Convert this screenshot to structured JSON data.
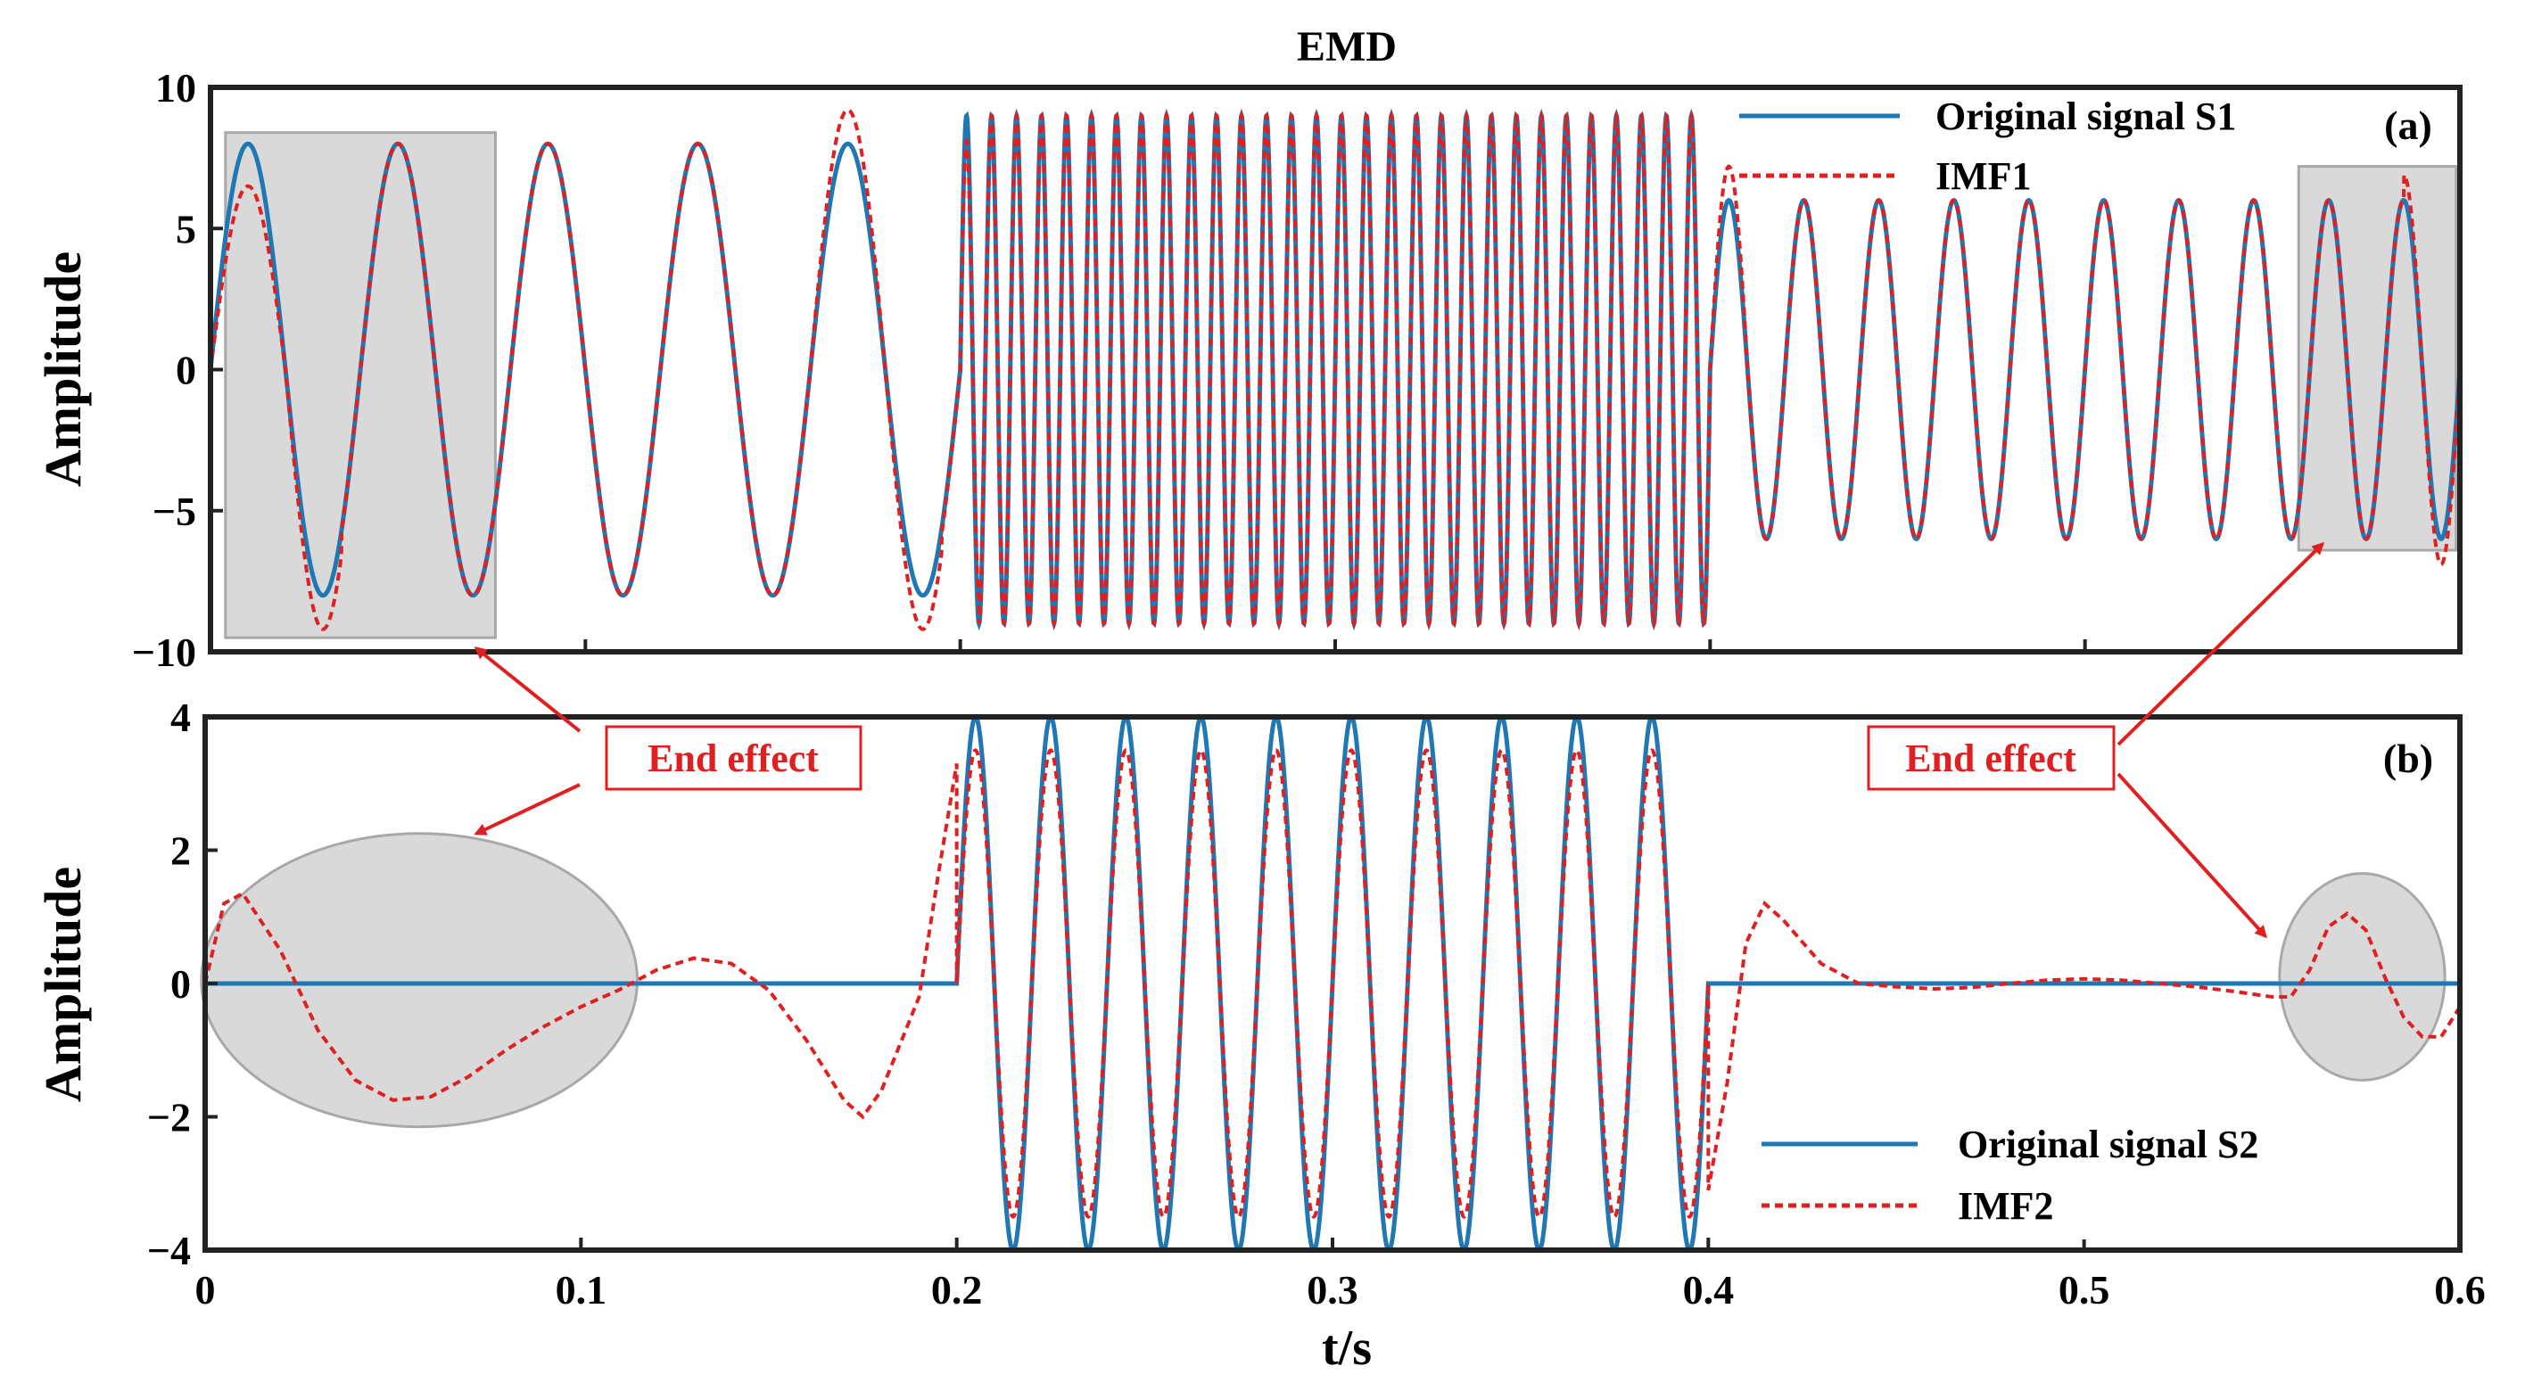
{
  "chart_data": [
    {
      "panel": "(a)",
      "type": "line",
      "title": "EMD",
      "xlabel": "",
      "ylabel": "Amplitude",
      "xlim": [
        0,
        0.6
      ],
      "ylim": [
        -10,
        10
      ],
      "yticks": [
        10,
        5,
        0,
        -5,
        -10
      ],
      "ytick_labels": [
        "10",
        "5",
        "0",
        "−5",
        "−10"
      ],
      "legend_position": "top-right",
      "series": [
        {
          "name": "Original signal S1",
          "color": "#1f77b4",
          "style": "solid",
          "segments": [
            {
              "t_start": 0.0,
              "t_end": 0.2,
              "amplitude": 8,
              "frequency_hz": 25
            },
            {
              "t_start": 0.2,
              "t_end": 0.4,
              "amplitude": 9,
              "frequency_hz": 150
            },
            {
              "t_start": 0.4,
              "t_end": 0.6,
              "amplitude": 6,
              "frequency_hz": 50
            }
          ]
        },
        {
          "name": "IMF1",
          "color": "#e02020",
          "style": "dashed",
          "notes": "follows S1 closely; deviates near t=0, t=0.2, t=0.4 and t=0.6"
        }
      ],
      "annotations": [
        {
          "label": "End effect",
          "region": "shaded box",
          "t_range": [
            0.004,
            0.076
          ],
          "y_range": [
            -9.5,
            8.4
          ]
        },
        {
          "label": "End effect",
          "region": "shaded box",
          "t_range": [
            0.557,
            0.599
          ],
          "y_range": [
            -6.4,
            7.2
          ]
        }
      ]
    },
    {
      "panel": "(b)",
      "type": "line",
      "title": "",
      "xlabel": "t/s",
      "ylabel": "Amplitude",
      "xlim": [
        0,
        0.6
      ],
      "ylim": [
        -4,
        4
      ],
      "xticks": [
        0,
        0.1,
        0.2,
        0.3,
        0.4,
        0.5,
        0.6
      ],
      "xtick_labels": [
        "0",
        "0.1",
        "0.2",
        "0.3",
        "0.4",
        "0.5",
        "0.6"
      ],
      "yticks": [
        4,
        2,
        0,
        -2,
        -4
      ],
      "ytick_labels": [
        "4",
        "2",
        "0",
        "−2",
        "−4"
      ],
      "legend_position": "bottom-right",
      "series": [
        {
          "name": "Original signal S2",
          "color": "#1f77b4",
          "style": "solid",
          "segments": [
            {
              "t_start": 0.0,
              "t_end": 0.2,
              "amplitude": 0,
              "frequency_hz": 0
            },
            {
              "t_start": 0.2,
              "t_end": 0.4,
              "amplitude": 4,
              "frequency_hz": 50
            },
            {
              "t_start": 0.4,
              "t_end": 0.6,
              "amplitude": 0,
              "frequency_hz": 0
            }
          ]
        },
        {
          "name": "IMF2",
          "color": "#e02020",
          "style": "dashed",
          "points": [
            [
              0.0,
              0.0
            ],
            [
              0.005,
              1.2
            ],
            [
              0.01,
              1.35
            ],
            [
              0.02,
              0.5
            ],
            [
              0.03,
              -0.7
            ],
            [
              0.04,
              -1.45
            ],
            [
              0.05,
              -1.75
            ],
            [
              0.06,
              -1.7
            ],
            [
              0.07,
              -1.4
            ],
            [
              0.08,
              -1.0
            ],
            [
              0.09,
              -0.65
            ],
            [
              0.1,
              -0.35
            ],
            [
              0.11,
              -0.1
            ],
            [
              0.12,
              0.2
            ],
            [
              0.13,
              0.38
            ],
            [
              0.14,
              0.3
            ],
            [
              0.15,
              -0.1
            ],
            [
              0.16,
              -0.85
            ],
            [
              0.17,
              -1.75
            ],
            [
              0.175,
              -2.0
            ],
            [
              0.18,
              -1.6
            ],
            [
              0.19,
              -0.2
            ],
            [
              0.195,
              1.6
            ],
            [
              0.2,
              3.3
            ]
          ],
          "points_after": [
            [
              0.4,
              -3.1
            ],
            [
              0.405,
              -1.5
            ],
            [
              0.41,
              0.6
            ],
            [
              0.415,
              1.2
            ],
            [
              0.42,
              0.95
            ],
            [
              0.43,
              0.3
            ],
            [
              0.44,
              0.0
            ],
            [
              0.45,
              -0.05
            ],
            [
              0.46,
              -0.08
            ],
            [
              0.47,
              -0.06
            ],
            [
              0.48,
              0.0
            ],
            [
              0.49,
              0.05
            ],
            [
              0.5,
              0.07
            ],
            [
              0.51,
              0.05
            ],
            [
              0.52,
              0.0
            ],
            [
              0.53,
              -0.05
            ],
            [
              0.54,
              -0.12
            ],
            [
              0.55,
              -0.2
            ],
            [
              0.555,
              -0.2
            ],
            [
              0.56,
              0.2
            ],
            [
              0.565,
              0.85
            ],
            [
              0.57,
              1.05
            ],
            [
              0.575,
              0.8
            ],
            [
              0.58,
              0.1
            ],
            [
              0.585,
              -0.5
            ],
            [
              0.59,
              -0.8
            ],
            [
              0.595,
              -0.8
            ],
            [
              0.6,
              -0.35
            ]
          ],
          "middle_segment": {
            "t_start": 0.2,
            "t_end": 0.4,
            "amplitude": 3.5,
            "frequency_hz": 50
          }
        }
      ],
      "annotations": [
        {
          "label": "End effect",
          "region": "shaded ellipse",
          "center": [
            0.057,
            0.05
          ],
          "radius_t": 0.058,
          "radius_y": 2.2
        },
        {
          "label": "End effect",
          "region": "shaded ellipse",
          "center": [
            0.574,
            0.1
          ],
          "radius_t": 0.022,
          "radius_y": 1.55
        }
      ]
    }
  ],
  "colors": {
    "s_line": "#1f77b4",
    "imf_line": "#e02020",
    "annotation_red": "#e02020",
    "shade": "#d9d9d9"
  }
}
